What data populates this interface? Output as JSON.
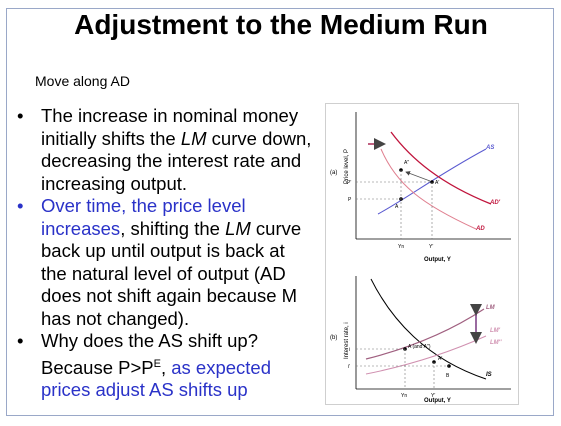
{
  "slide": {
    "title": "Adjustment to the Medium Run",
    "subtitle": "Move along AD",
    "bullets": [
      {
        "parts": [
          {
            "text": "The increase in nominal money initially shifts the ",
            "style": "normal"
          },
          {
            "text": "LM",
            "style": "italic"
          },
          {
            "text": " curve down, decreasing the interest rate and increasing output.",
            "style": "normal"
          }
        ]
      },
      {
        "parts": [
          {
            "text": "Over time, the price level increases",
            "style": "blue"
          },
          {
            "text": ", shifting the ",
            "style": "normal"
          },
          {
            "text": "LM",
            "style": "italic"
          },
          {
            "text": " curve back up until output is back at the natural level of output (AD does not shift again because M has not changed).",
            "style": "normal"
          }
        ]
      },
      {
        "parts": [
          {
            "text": "Why does the AS shift up? Because P>P",
            "style": "normal"
          },
          {
            "text": "E",
            "style": "sup"
          },
          {
            "text": ", ",
            "style": "normal"
          },
          {
            "text": "as expected prices adjust AS shifts up",
            "style": "blue"
          }
        ]
      }
    ]
  },
  "figure_a": {
    "panel_label": "(a)",
    "y_axis_label": "Price level, P",
    "x_axis_label": "Output, Y",
    "curves": {
      "as": "AS",
      "ad": "AD",
      "ad_prime": "AD'"
    },
    "points": {
      "a": "A",
      "a_prime": "A'",
      "a_dprime": "A''"
    },
    "y_ticks": {
      "p": "P",
      "p_prime": "P'"
    },
    "x_ticks": {
      "yn": "Yn",
      "y_prime": "Y'"
    }
  },
  "figure_b": {
    "panel_label": "(b)",
    "y_axis_label": "Interest rate, i",
    "x_axis_label": "Output, Y",
    "curves": {
      "lm": "LM",
      "lm_prime": "LM'",
      "lm_dprime": "LM''",
      "is": "IS"
    },
    "points": {
      "a": "A (and A'')",
      "a_prime": "A'",
      "b": "B"
    },
    "y_ticks": {
      "i": "i",
      "i_prime": "i'"
    },
    "x_ticks": {
      "yn": "Yn",
      "y_prime": "Y'"
    }
  },
  "colors": {
    "blue_text": "#2a32c8",
    "ad_curve": "#c0143c",
    "as_curve": "#5a5ad0",
    "arrow": "#c06080",
    "lm_arrow": "#9a6aa0"
  }
}
